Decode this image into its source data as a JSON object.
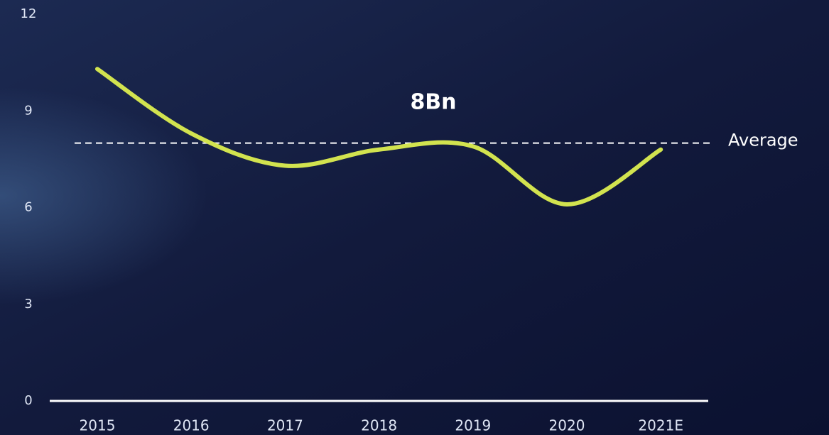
{
  "chart_data": {
    "type": "line",
    "categories": [
      "2015",
      "2016",
      "2017",
      "2018",
      "2019",
      "2020",
      "2021E"
    ],
    "series": [
      {
        "color": "#d2e34f",
        "values": [
          10.3,
          8.3,
          7.3,
          7.8,
          7.9,
          6.1,
          7.8
        ]
      }
    ],
    "ylim": [
      0,
      12
    ],
    "yticks": [
      0,
      3,
      6,
      9,
      12
    ],
    "average": {
      "value": 8,
      "label": "Average"
    },
    "annotation": "8Bn"
  }
}
